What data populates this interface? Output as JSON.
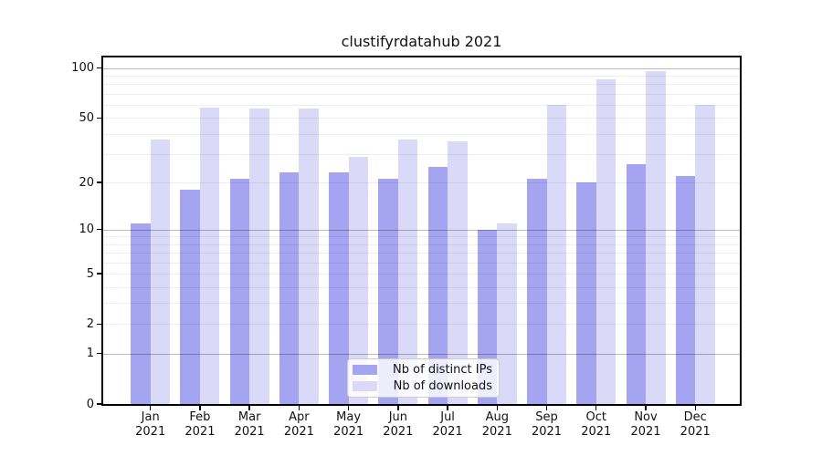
{
  "chart_data": {
    "type": "bar",
    "title": "clustifyrdatahub 2021",
    "year_label": "2021",
    "categories": [
      "Jan",
      "Feb",
      "Mar",
      "Apr",
      "May",
      "Jun",
      "Jul",
      "Aug",
      "Sep",
      "Oct",
      "Nov",
      "Dec"
    ],
    "series": [
      {
        "name": "Nb of distinct IPs",
        "color": "#a4a4f0",
        "values": [
          11,
          18,
          21,
          23,
          23,
          21,
          25,
          10,
          21,
          20,
          26,
          22
        ]
      },
      {
        "name": "Nb of downloads",
        "color": "#dadaf8",
        "values": [
          37,
          58,
          57,
          57,
          29,
          37,
          36,
          11,
          60,
          86,
          96,
          60
        ]
      }
    ],
    "xlabel": "",
    "ylabel": "",
    "yscale": "log1p",
    "ylim": [
      0,
      116
    ],
    "yticks": [
      0,
      1,
      2,
      5,
      10,
      20,
      50,
      100
    ],
    "yticks_emphasized": [
      1,
      10,
      100
    ],
    "yminor_gridlines": [
      3,
      4,
      6,
      7,
      8,
      9,
      30,
      40,
      60,
      70,
      80,
      90
    ],
    "grid": "horizontal",
    "legend_position": "lower center"
  }
}
